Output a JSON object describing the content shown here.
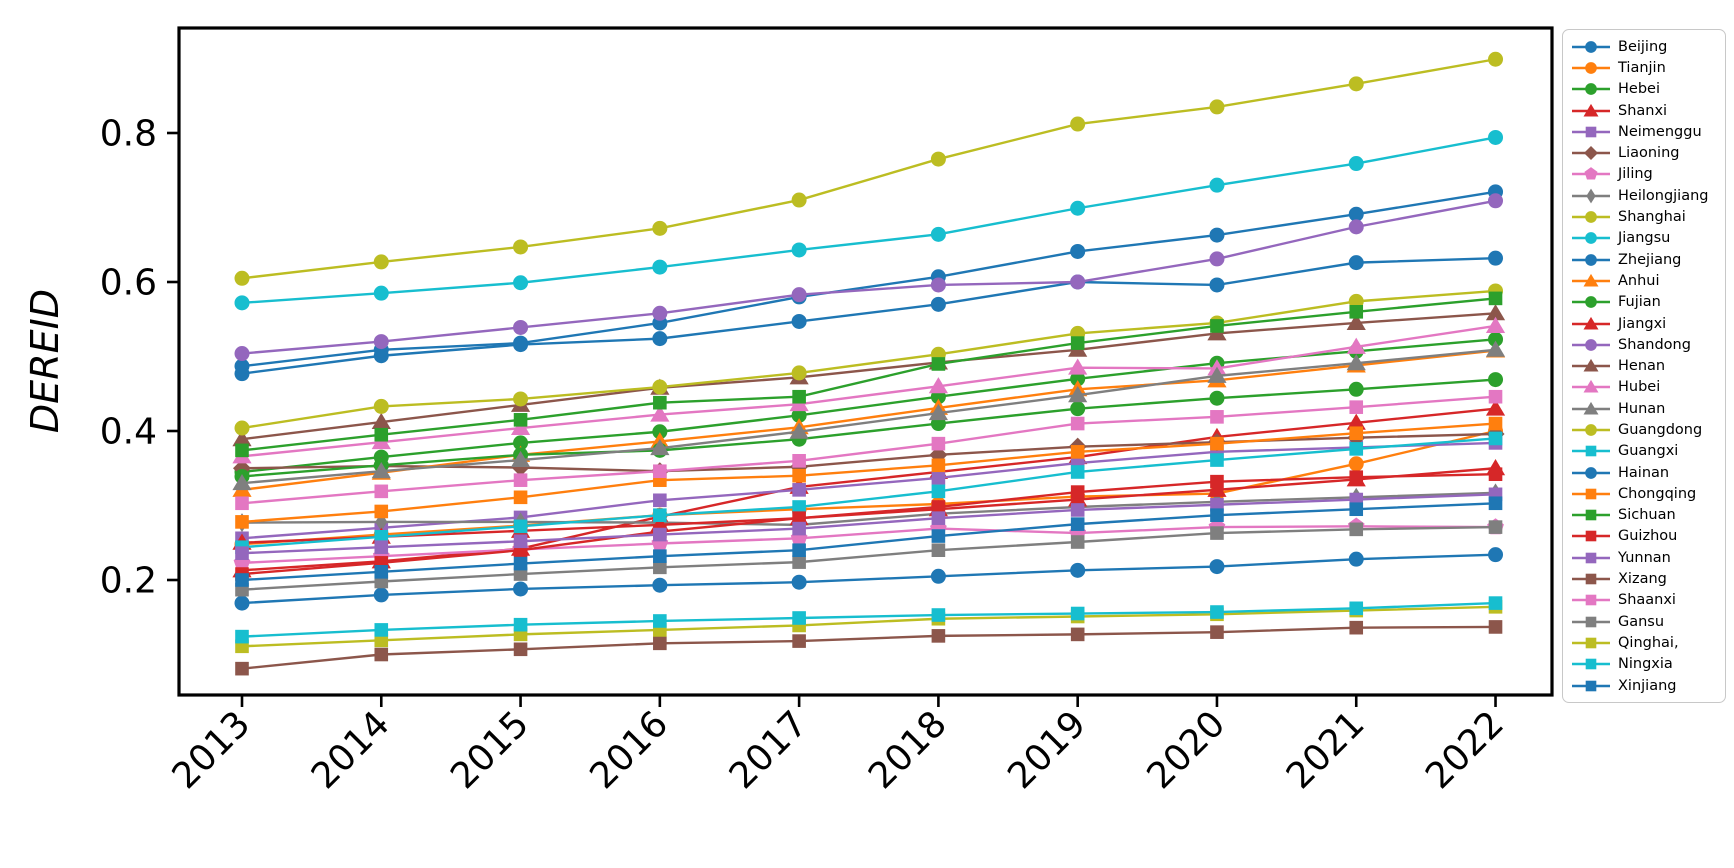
{
  "chart_data": {
    "type": "line",
    "title": "",
    "xlabel": "",
    "ylabel": "DEREID",
    "x": [
      2013,
      2014,
      2015,
      2016,
      2017,
      2018,
      2019,
      2020,
      2021,
      2022
    ],
    "yticks": [
      0.2,
      0.4,
      0.6,
      0.8
    ],
    "ylim": [
      0.03,
      0.945
    ],
    "grid": false,
    "xtick_rotation": 45,
    "legend_position": "right-outside",
    "frame_color": "#000000",
    "series": [
      {
        "name": "Beijing",
        "color": "#1f77b4",
        "marker": "circle",
        "values": [
          0.477,
          0.501,
          0.516,
          0.524,
          0.547,
          0.57,
          0.6,
          0.596,
          0.626,
          0.632
        ]
      },
      {
        "name": "Tianjin",
        "color": "#ff7f0e",
        "marker": "circle",
        "values": [
          0.248,
          0.261,
          0.273,
          0.287,
          0.295,
          0.302,
          0.312,
          0.316,
          0.356,
          0.4
        ]
      },
      {
        "name": "Hebei",
        "color": "#2ca02c",
        "marker": "circle",
        "values": [
          0.345,
          0.365,
          0.384,
          0.399,
          0.421,
          0.446,
          0.47,
          0.491,
          0.507,
          0.523
        ]
      },
      {
        "name": "Shanxi",
        "color": "#d62728",
        "marker": "triangle",
        "values": [
          0.213,
          0.225,
          0.242,
          0.285,
          0.325,
          0.345,
          0.365,
          0.392,
          0.411,
          0.43
        ]
      },
      {
        "name": "Neimenggu",
        "color": "#9467bd",
        "marker": "square",
        "values": [
          0.256,
          0.27,
          0.284,
          0.307,
          0.321,
          0.337,
          0.357,
          0.372,
          0.378,
          0.384
        ]
      },
      {
        "name": "Liaoning",
        "color": "#8c564b",
        "marker": "diamond",
        "values": [
          0.35,
          0.353,
          0.351,
          0.346,
          0.352,
          0.368,
          0.379,
          0.385,
          0.391,
          0.396
        ]
      },
      {
        "name": "Jiling",
        "color": "#e377c2",
        "marker": "pentagon",
        "values": [
          0.223,
          0.232,
          0.241,
          0.249,
          0.256,
          0.269,
          0.263,
          0.271,
          0.272,
          0.271
        ]
      },
      {
        "name": "Heilongjiang",
        "color": "#7f7f7f",
        "marker": "thin-diamond",
        "values": [
          0.277,
          0.278,
          0.278,
          0.277,
          0.274,
          0.289,
          0.298,
          0.305,
          0.311,
          0.317
        ]
      },
      {
        "name": "Shanghai",
        "color": "#bcbd22",
        "marker": "circle",
        "values": [
          0.605,
          0.627,
          0.647,
          0.672,
          0.71,
          0.765,
          0.812,
          0.835,
          0.866,
          0.899
        ]
      },
      {
        "name": "Jiangsu",
        "color": "#17becf",
        "marker": "circle",
        "values": [
          0.572,
          0.585,
          0.599,
          0.62,
          0.643,
          0.664,
          0.699,
          0.73,
          0.759,
          0.794
        ]
      },
      {
        "name": "Zhejiang",
        "color": "#1f77b4",
        "marker": "circle",
        "values": [
          0.487,
          0.509,
          0.518,
          0.545,
          0.58,
          0.607,
          0.641,
          0.663,
          0.691,
          0.721
        ]
      },
      {
        "name": "Anhui",
        "color": "#ff7f0e",
        "marker": "triangle",
        "values": [
          0.321,
          0.344,
          0.368,
          0.386,
          0.405,
          0.431,
          0.456,
          0.468,
          0.488,
          0.508
        ]
      },
      {
        "name": "Fujian",
        "color": "#2ca02c",
        "marker": "circle",
        "values": [
          0.339,
          0.354,
          0.368,
          0.374,
          0.389,
          0.41,
          0.43,
          0.444,
          0.456,
          0.469
        ]
      },
      {
        "name": "Jiangxi",
        "color": "#d62728",
        "marker": "triangle",
        "values": [
          0.25,
          0.258,
          0.266,
          0.274,
          0.283,
          0.295,
          0.308,
          0.321,
          0.335,
          0.35
        ]
      },
      {
        "name": "Shandong",
        "color": "#9467bd",
        "marker": "circle",
        "values": [
          0.504,
          0.52,
          0.539,
          0.558,
          0.583,
          0.596,
          0.6,
          0.631,
          0.674,
          0.709
        ]
      },
      {
        "name": "Henan",
        "color": "#8c564b",
        "marker": "triangle",
        "values": [
          0.389,
          0.412,
          0.435,
          0.458,
          0.472,
          0.492,
          0.509,
          0.531,
          0.545,
          0.558
        ]
      },
      {
        "name": "Hubei",
        "color": "#e377c2",
        "marker": "triangle",
        "values": [
          0.366,
          0.385,
          0.404,
          0.422,
          0.436,
          0.46,
          0.485,
          0.484,
          0.513,
          0.541
        ]
      },
      {
        "name": "Hunan",
        "color": "#7f7f7f",
        "marker": "triangle",
        "values": [
          0.33,
          0.346,
          0.361,
          0.377,
          0.399,
          0.424,
          0.448,
          0.474,
          0.491,
          0.509
        ]
      },
      {
        "name": "Guangdong",
        "color": "#bcbd22",
        "marker": "circle",
        "values": [
          0.404,
          0.433,
          0.443,
          0.459,
          0.478,
          0.503,
          0.531,
          0.545,
          0.574,
          0.588
        ]
      },
      {
        "name": "Guangxi",
        "color": "#17becf",
        "marker": "square",
        "values": [
          0.244,
          0.258,
          0.272,
          0.287,
          0.298,
          0.319,
          0.345,
          0.361,
          0.376,
          0.39
        ]
      },
      {
        "name": "Hainan",
        "color": "#1f77b4",
        "marker": "circle",
        "values": [
          0.169,
          0.18,
          0.188,
          0.193,
          0.197,
          0.205,
          0.213,
          0.218,
          0.228,
          0.234
        ]
      },
      {
        "name": "Chongqing",
        "color": "#ff7f0e",
        "marker": "square",
        "values": [
          0.278,
          0.292,
          0.311,
          0.334,
          0.34,
          0.354,
          0.372,
          0.383,
          0.397,
          0.41
        ]
      },
      {
        "name": "Sichuan",
        "color": "#2ca02c",
        "marker": "square",
        "values": [
          0.374,
          0.395,
          0.415,
          0.438,
          0.446,
          0.49,
          0.518,
          0.541,
          0.56,
          0.578
        ]
      },
      {
        "name": "Guizhou",
        "color": "#d62728",
        "marker": "square",
        "values": [
          0.208,
          0.223,
          0.24,
          0.265,
          0.283,
          0.298,
          0.318,
          0.332,
          0.338,
          0.342
        ]
      },
      {
        "name": "Yunnan",
        "color": "#9467bd",
        "marker": "square",
        "values": [
          0.236,
          0.244,
          0.252,
          0.261,
          0.269,
          0.283,
          0.294,
          0.301,
          0.308,
          0.315
        ]
      },
      {
        "name": "Xizang",
        "color": "#8c564b",
        "marker": "square",
        "values": [
          0.081,
          0.1,
          0.107,
          0.115,
          0.118,
          0.125,
          0.127,
          0.13,
          0.136,
          0.137
        ]
      },
      {
        "name": "Shaanxi",
        "color": "#e377c2",
        "marker": "square",
        "values": [
          0.303,
          0.319,
          0.334,
          0.346,
          0.36,
          0.383,
          0.41,
          0.419,
          0.432,
          0.446
        ]
      },
      {
        "name": "Gansu",
        "color": "#7f7f7f",
        "marker": "square",
        "values": [
          0.187,
          0.198,
          0.208,
          0.217,
          0.224,
          0.24,
          0.251,
          0.263,
          0.268,
          0.271
        ]
      },
      {
        "name": "Qinghai,",
        "color": "#bcbd22",
        "marker": "square",
        "values": [
          0.111,
          0.119,
          0.127,
          0.133,
          0.139,
          0.148,
          0.151,
          0.154,
          0.159,
          0.164
        ]
      },
      {
        "name": "Ningxia",
        "color": "#17becf",
        "marker": "square",
        "values": [
          0.124,
          0.133,
          0.14,
          0.145,
          0.149,
          0.153,
          0.155,
          0.157,
          0.162,
          0.169
        ]
      },
      {
        "name": "Xinjiang",
        "color": "#1f77b4",
        "marker": "square",
        "values": [
          0.2,
          0.211,
          0.222,
          0.232,
          0.24,
          0.259,
          0.275,
          0.287,
          0.295,
          0.303
        ]
      }
    ]
  }
}
